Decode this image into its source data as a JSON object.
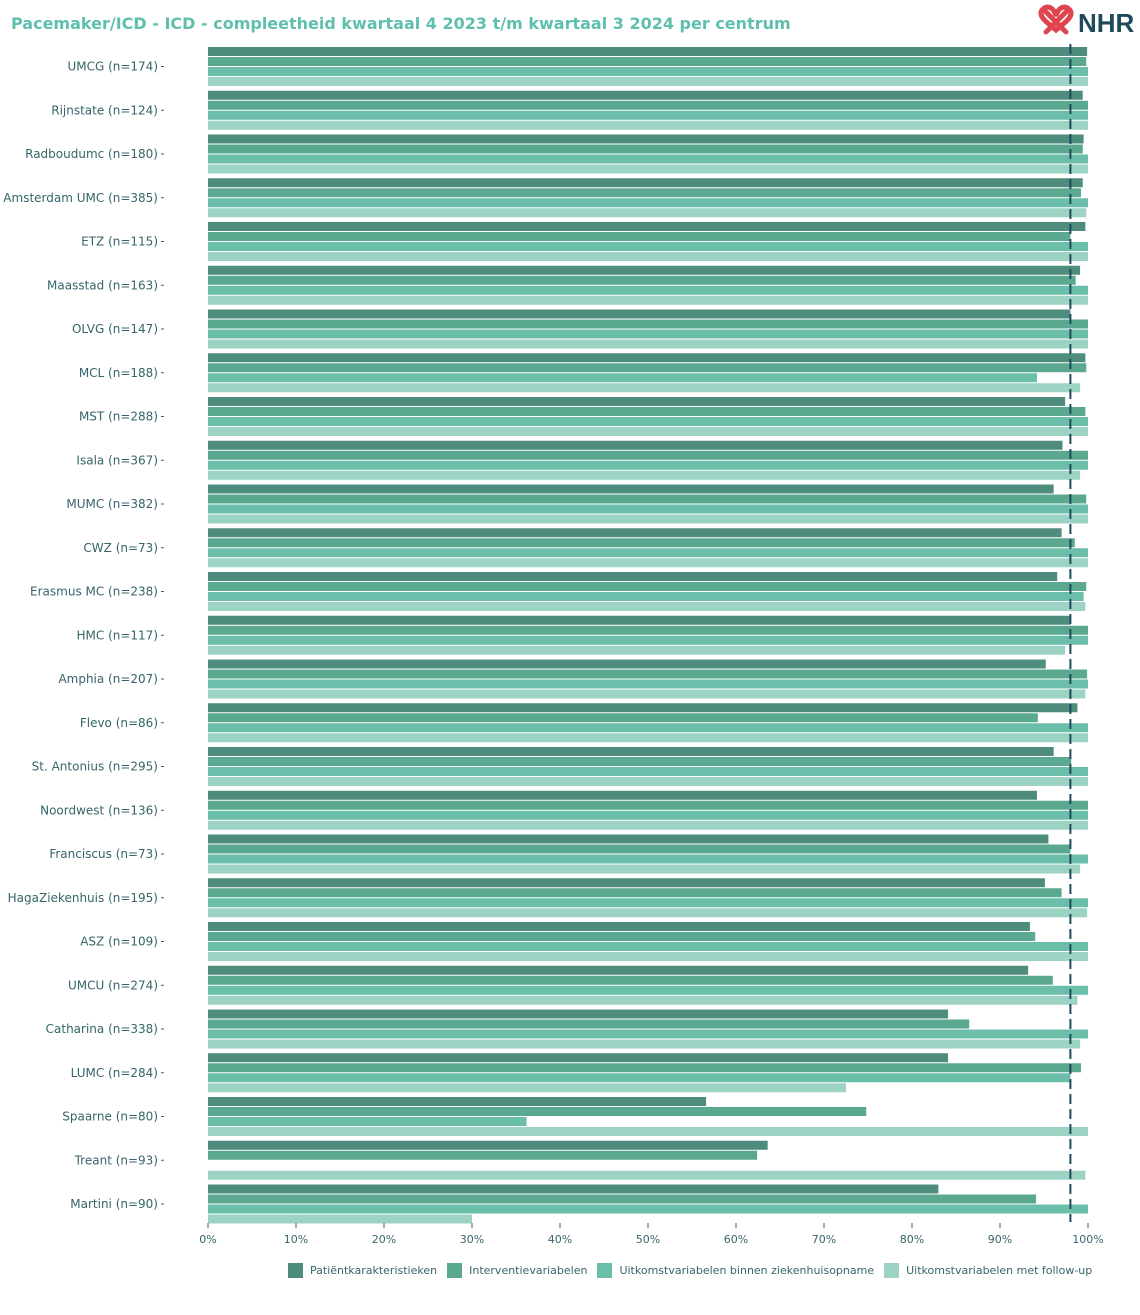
{
  "title": "Pacemaker/ICD - ICD - compleetheid kwartaal 4 2023 t/m kwartaal 3 2024 per centrum",
  "logo_text": "NHR",
  "colors": {
    "title": "#5fbfad",
    "label": "#35656a",
    "reference_line": "#1f4a5c",
    "logo_red": "#e0454f",
    "logo_text": "#1f4a5c"
  },
  "chart_data": {
    "type": "bar",
    "orientation": "horizontal",
    "categories": [
      "UMCG (n=174)",
      "Rijnstate (n=124)",
      "Radboudumc (n=180)",
      "Amsterdam UMC (n=385)",
      "ETZ (n=115)",
      "Maasstad (n=163)",
      "OLVG (n=147)",
      "MCL (n=188)",
      "MST (n=288)",
      "Isala (n=367)",
      "MUMC (n=382)",
      "CWZ (n=73)",
      "Erasmus MC (n=238)",
      "HMC (n=117)",
      "Amphia (n=207)",
      "Flevo (n=86)",
      "St. Antonius (n=295)",
      "Noordwest (n=136)",
      "Franciscus (n=73)",
      "HagaZiekenhuis (n=195)",
      "ASZ (n=109)",
      "UMCU (n=274)",
      "Catharina (n=338)",
      "LUMC (n=284)",
      "Spaarne (n=80)",
      "Treant (n=93)",
      "Martini (n=90)"
    ],
    "series": [
      {
        "name": "Patiëntkarakteristieken",
        "color": "#4e8c7e",
        "values": [
          99.9,
          99.4,
          99.5,
          99.4,
          99.7,
          99.1,
          98.0,
          99.7,
          97.4,
          97.1,
          96.1,
          97.0,
          96.5,
          98.0,
          95.2,
          98.8,
          96.1,
          94.2,
          95.5,
          95.1,
          93.4,
          93.2,
          84.1,
          84.1,
          56.6,
          63.6,
          83.0
        ]
      },
      {
        "name": "Interventievariabelen",
        "color": "#5ba890",
        "values": [
          99.8,
          100,
          99.4,
          99.2,
          98.0,
          98.6,
          100,
          99.8,
          99.7,
          100,
          99.8,
          98.5,
          99.8,
          100,
          99.9,
          94.3,
          98.1,
          100,
          98.0,
          97.0,
          94.0,
          96.0,
          86.5,
          99.2,
          74.8,
          62.4,
          94.1
        ]
      },
      {
        "name": "Uitkomstvariabelen binnen ziekenhuisopname",
        "color": "#6bbfaa",
        "values": [
          100,
          100,
          100,
          100,
          100,
          100,
          100,
          94.2,
          100,
          100,
          100,
          100,
          99.5,
          100,
          100,
          100,
          100,
          100,
          100,
          100,
          100,
          100,
          100,
          98.0,
          36.2,
          0,
          100
        ]
      },
      {
        "name": "Uitkomstvariabelen met follow-up",
        "color": "#9dd3c4",
        "values": [
          100,
          100,
          100,
          99.8,
          100,
          100,
          100,
          99.1,
          100,
          99.1,
          100,
          100,
          99.7,
          97.4,
          99.7,
          100,
          100,
          100,
          99.1,
          99.9,
          100,
          98.8,
          99.1,
          72.5,
          100,
          99.7,
          30.0
        ]
      }
    ],
    "reference_line": 98,
    "xlim": [
      0,
      100
    ],
    "x_tick_labels": [
      "0%",
      "10%",
      "20%",
      "30%",
      "40%",
      "50%",
      "60%",
      "70%",
      "80%",
      "90%",
      "100%"
    ],
    "legend_position": "bottom",
    "grid": false
  }
}
